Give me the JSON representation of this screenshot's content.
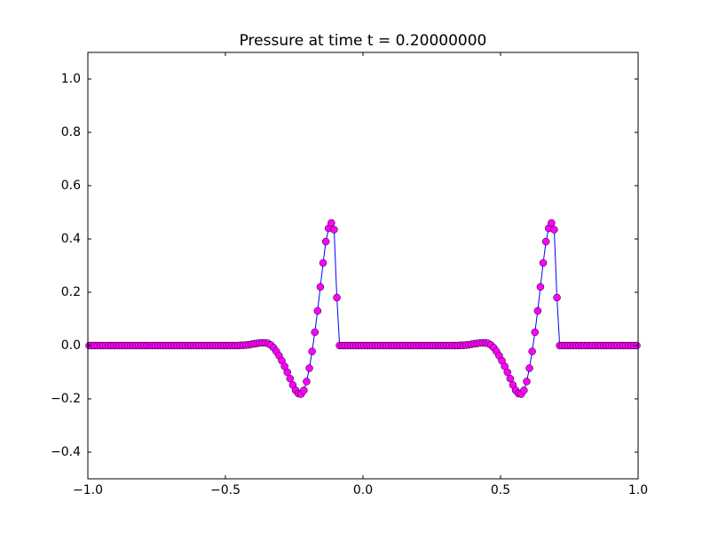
{
  "chart_data": {
    "type": "line",
    "title": "Pressure at time t =     0.20000000",
    "xlim": [
      -1,
      1
    ],
    "ylim": [
      -0.5,
      1.1
    ],
    "xticks": [
      {
        "value": -1,
        "label": "−1.0"
      },
      {
        "value": -0.5,
        "label": "−0.5"
      },
      {
        "value": 0,
        "label": "0.0"
      },
      {
        "value": 0.5,
        "label": "0.5"
      },
      {
        "value": 1,
        "label": "1.0"
      }
    ],
    "yticks": [
      {
        "value": -0.4,
        "label": "−0.4"
      },
      {
        "value": -0.2,
        "label": "−0.2"
      },
      {
        "value": 0,
        "label": "0.0"
      },
      {
        "value": 0.2,
        "label": "0.2"
      },
      {
        "value": 0.4,
        "label": "0.4"
      },
      {
        "value": 0.6,
        "label": "0.6"
      },
      {
        "value": 0.8,
        "label": "0.8"
      },
      {
        "value": 1,
        "label": "1.0"
      }
    ],
    "color": "#0000ff",
    "marker_color": "#ff00ff",
    "x": [
      -0.995,
      -0.985,
      -0.975,
      -0.965,
      -0.955,
      -0.945,
      -0.935,
      -0.925,
      -0.915,
      -0.905,
      -0.895,
      -0.885,
      -0.875,
      -0.865,
      -0.855,
      -0.845,
      -0.835,
      -0.825,
      -0.815,
      -0.805,
      -0.795,
      -0.785,
      -0.775,
      -0.765,
      -0.755,
      -0.745,
      -0.735,
      -0.725,
      -0.715,
      -0.705,
      -0.695,
      -0.685,
      -0.675,
      -0.665,
      -0.655,
      -0.645,
      -0.635,
      -0.625,
      -0.615,
      -0.605,
      -0.595,
      -0.585,
      -0.575,
      -0.565,
      -0.555,
      -0.545,
      -0.535,
      -0.525,
      -0.515,
      -0.505,
      -0.495,
      -0.485,
      -0.475,
      -0.465,
      -0.455,
      -0.445,
      -0.435,
      -0.425,
      -0.415,
      -0.405,
      -0.395,
      -0.385,
      -0.375,
      -0.365,
      -0.355,
      -0.345,
      -0.335,
      -0.325,
      -0.315,
      -0.305,
      -0.295,
      -0.285,
      -0.275,
      -0.265,
      -0.255,
      -0.245,
      -0.235,
      -0.225,
      -0.215,
      -0.205,
      -0.195,
      -0.185,
      -0.175,
      -0.165,
      -0.155,
      -0.145,
      -0.135,
      -0.125,
      -0.115,
      -0.105,
      -0.095,
      -0.085,
      -0.075,
      -0.065,
      -0.055,
      -0.045,
      -0.035,
      -0.025,
      -0.015,
      -0.005,
      0.005,
      0.015,
      0.025,
      0.035,
      0.045,
      0.055,
      0.065,
      0.075,
      0.085,
      0.095,
      0.105,
      0.115,
      0.125,
      0.135,
      0.145,
      0.155,
      0.165,
      0.175,
      0.185,
      0.195,
      0.205,
      0.215,
      0.225,
      0.235,
      0.245,
      0.255,
      0.265,
      0.275,
      0.285,
      0.295,
      0.305,
      0.315,
      0.325,
      0.335,
      0.345,
      0.355,
      0.365,
      0.375,
      0.385,
      0.395,
      0.405,
      0.415,
      0.425,
      0.435,
      0.445,
      0.455,
      0.465,
      0.475,
      0.485,
      0.495,
      0.505,
      0.515,
      0.525,
      0.535,
      0.545,
      0.555,
      0.565,
      0.575,
      0.585,
      0.595,
      0.605,
      0.615,
      0.625,
      0.635,
      0.645,
      0.655,
      0.665,
      0.675,
      0.685,
      0.695,
      0.705,
      0.715,
      0.725,
      0.735,
      0.745,
      0.755,
      0.765,
      0.775,
      0.785,
      0.795,
      0.805,
      0.815,
      0.825,
      0.835,
      0.845,
      0.855,
      0.865,
      0.875,
      0.885,
      0.895,
      0.905,
      0.915,
      0.925,
      0.935,
      0.945,
      0.955,
      0.965,
      0.975,
      0.985,
      0.995
    ],
    "values": [
      0,
      0,
      0,
      0,
      0,
      0,
      0,
      0,
      0,
      0,
      0,
      0,
      0,
      0,
      0,
      0,
      0,
      0,
      0,
      0,
      0,
      0,
      0,
      0,
      0,
      0,
      0,
      0,
      0,
      0,
      0,
      0,
      0,
      0,
      0,
      0,
      0,
      0,
      0,
      0,
      0,
      0,
      0,
      0,
      0,
      0,
      0,
      0,
      0,
      0,
      0,
      0,
      0,
      0,
      0,
      0.001,
      0.001,
      0.002,
      0.003,
      0.005,
      0.007,
      0.008,
      0.01,
      0.01,
      0.01,
      0.008,
      0.002,
      -0.008,
      -0.022,
      -0.038,
      -0.057,
      -0.078,
      -0.1,
      -0.124,
      -0.148,
      -0.168,
      -0.18,
      -0.182,
      -0.168,
      -0.135,
      -0.085,
      -0.022,
      0.05,
      0.13,
      0.22,
      0.31,
      0.39,
      0.44,
      0.46,
      0.435,
      0.18,
      0,
      0,
      0,
      0,
      0,
      0,
      0,
      0,
      0,
      0,
      0,
      0,
      0,
      0,
      0,
      0,
      0,
      0,
      0,
      0,
      0,
      0,
      0,
      0,
      0,
      0,
      0,
      0,
      0,
      0,
      0,
      0,
      0,
      0,
      0,
      0,
      0,
      0,
      0,
      0,
      0,
      0,
      0,
      0,
      0.001,
      0.001,
      0.002,
      0.003,
      0.005,
      0.007,
      0.008,
      0.01,
      0.01,
      0.01,
      0.008,
      0.002,
      -0.008,
      -0.022,
      -0.038,
      -0.057,
      -0.078,
      -0.1,
      -0.124,
      -0.148,
      -0.168,
      -0.18,
      -0.182,
      -0.168,
      -0.135,
      -0.085,
      -0.022,
      0.05,
      0.13,
      0.22,
      0.31,
      0.39,
      0.44,
      0.46,
      0.435,
      0.18,
      0,
      0,
      0,
      0,
      0,
      0,
      0,
      0,
      0,
      0,
      0,
      0,
      0,
      0,
      0,
      0,
      0,
      0,
      0,
      0,
      0,
      0,
      0,
      0,
      0,
      0,
      0,
      0,
      0
    ]
  }
}
